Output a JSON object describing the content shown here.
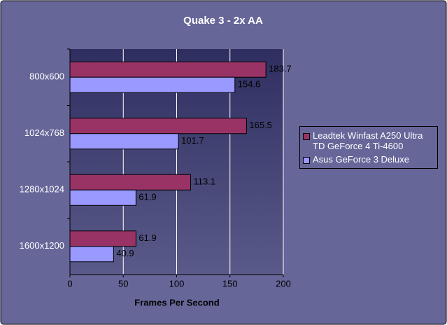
{
  "chart_data": {
    "type": "hbar",
    "title": "Quake 3 - 2x AA",
    "x_label": "Frames Per Second",
    "categories": [
      "800x600",
      "1024x768",
      "1280x1024",
      "1600x1200"
    ],
    "series": [
      {
        "name": "Leadtek Winfast A250 Ultra TD GeForce 4 Ti-4600",
        "color": "#993366",
        "values": [
          183.7,
          165.5,
          113.1,
          61.9
        ]
      },
      {
        "name": "Asus GeForce 3 Deluxe",
        "color": "#9999ff",
        "values": [
          154.6,
          101.7,
          61.9,
          40.9
        ]
      }
    ],
    "xlim": [
      0,
      200
    ],
    "xticks": [
      0,
      50,
      100,
      150,
      200
    ],
    "grid": true,
    "legend": "right"
  }
}
